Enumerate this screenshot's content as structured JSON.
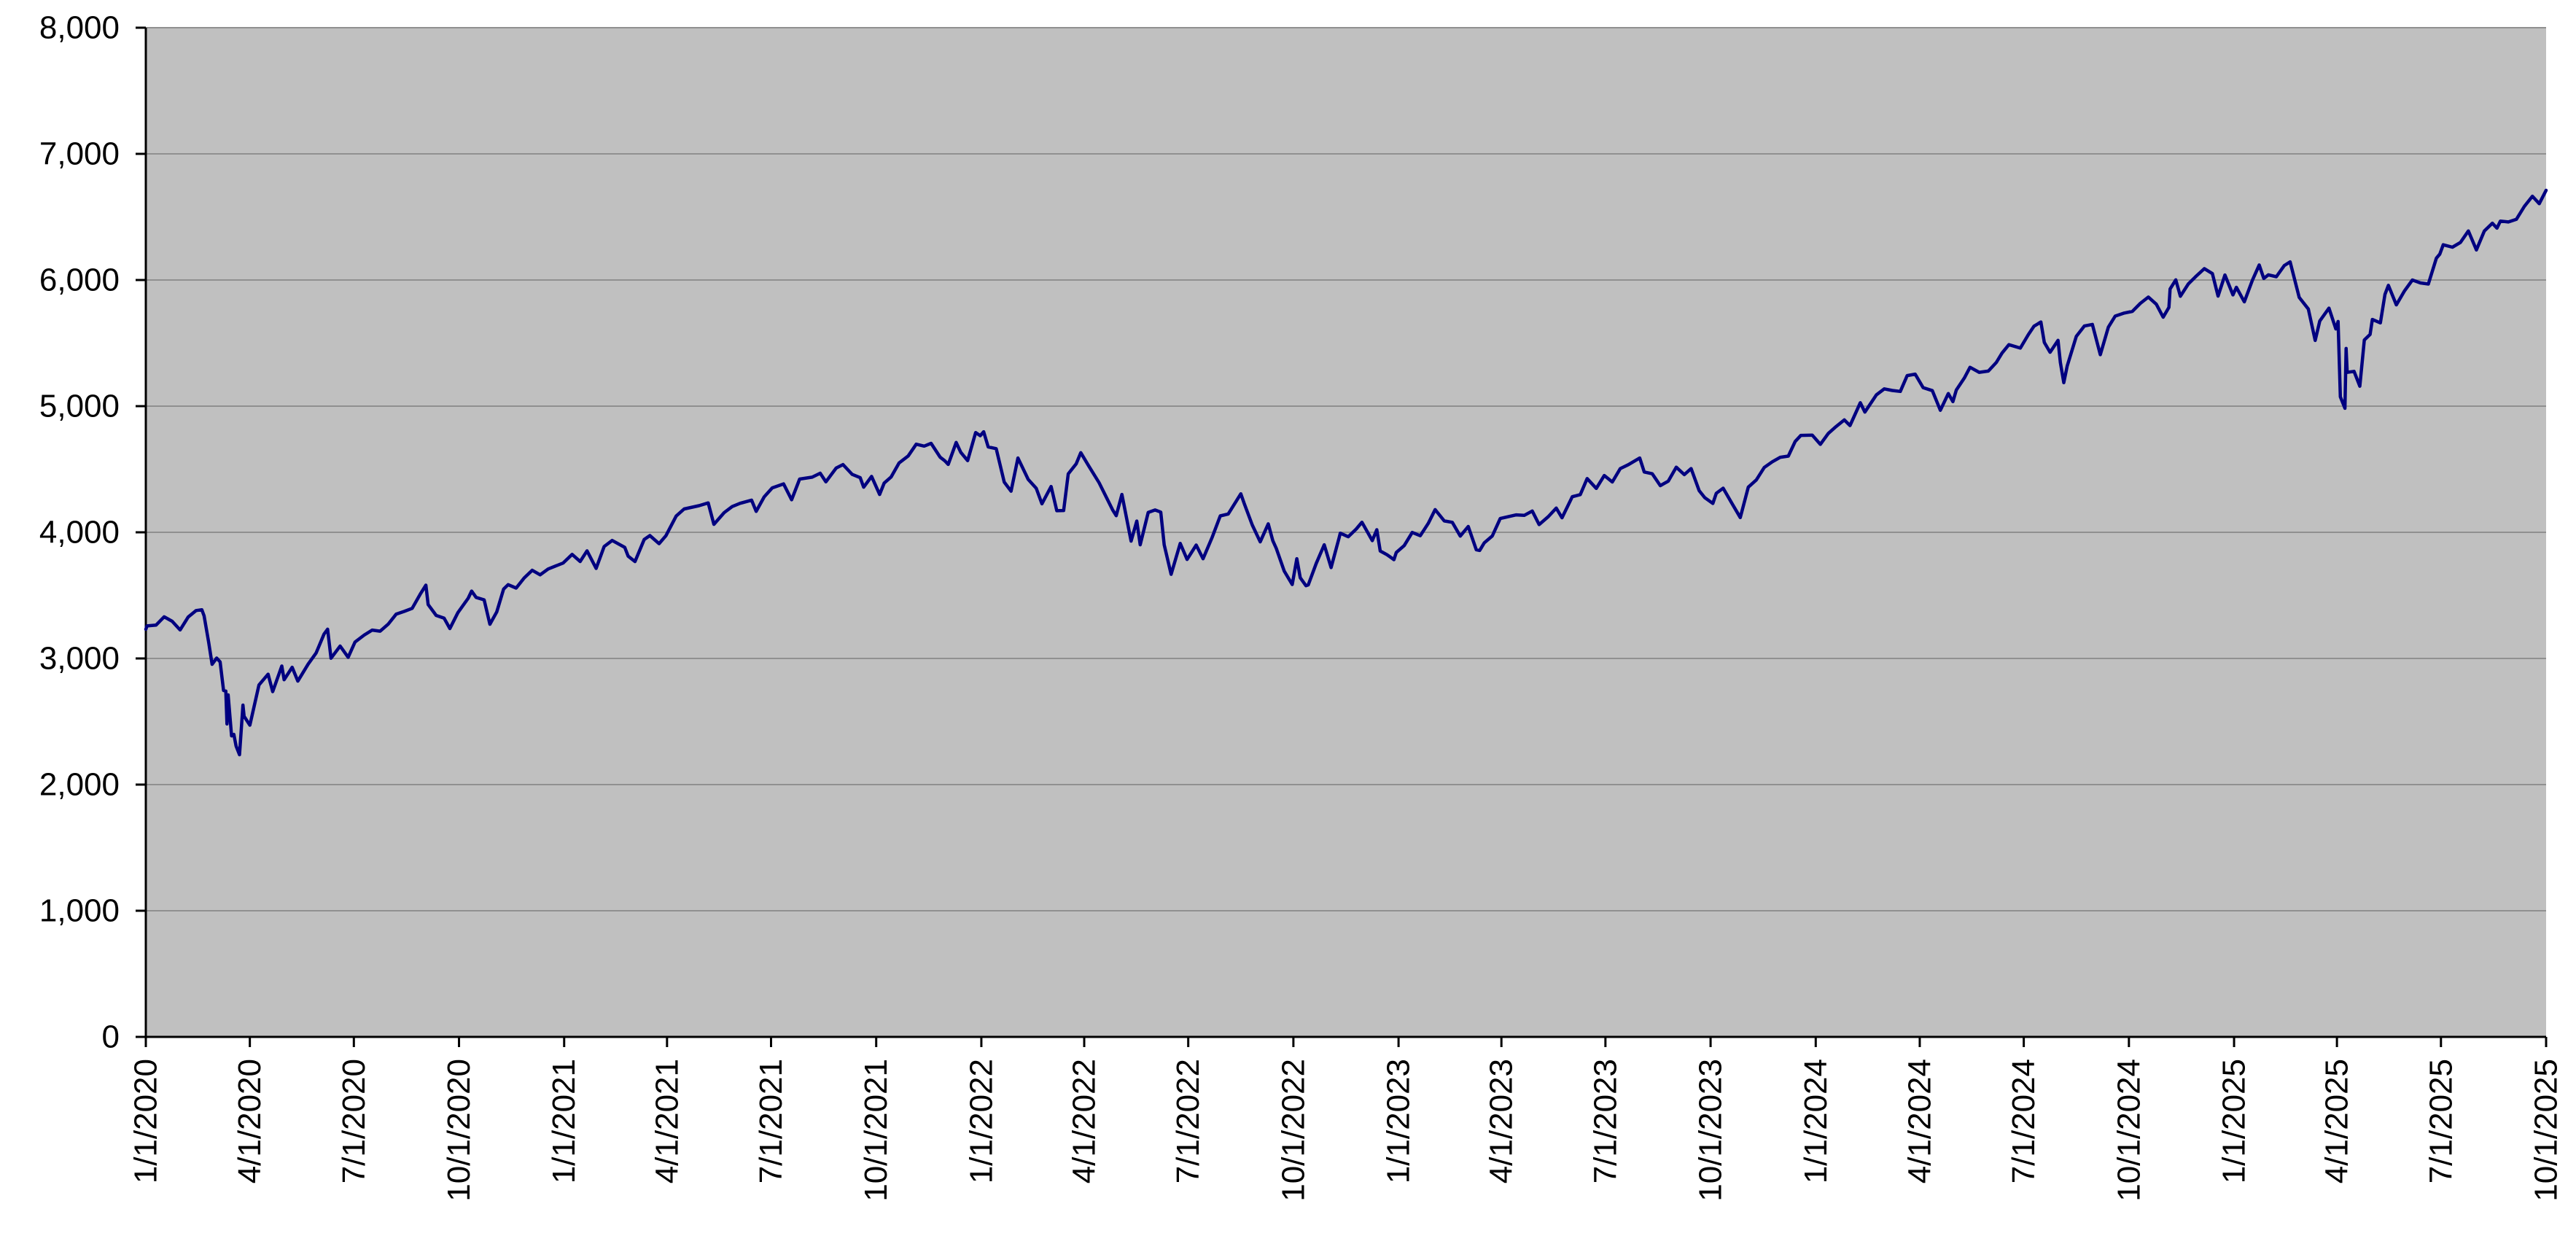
{
  "chart_data": {
    "type": "line",
    "title": "",
    "xlabel": "",
    "ylabel": "",
    "legend": "none",
    "grid": "horizontal",
    "ylim": [
      0,
      8000
    ],
    "x_range": [
      "1/1/2020",
      "10/1/2025"
    ],
    "colors": {
      "line": "#000080",
      "plot_background": "#c0c0c0",
      "gridline": "#909090",
      "axis": "#000000",
      "text": "#000000",
      "page_background": "#ffffff"
    },
    "y_ticks": [
      {
        "value": 0,
        "label": "0"
      },
      {
        "value": 1000,
        "label": "1,000"
      },
      {
        "value": 2000,
        "label": "2,000"
      },
      {
        "value": 3000,
        "label": "3,000"
      },
      {
        "value": 4000,
        "label": "4,000"
      },
      {
        "value": 5000,
        "label": "5,000"
      },
      {
        "value": 6000,
        "label": "6,000"
      },
      {
        "value": 7000,
        "label": "7,000"
      },
      {
        "value": 8000,
        "label": "8,000"
      }
    ],
    "x_ticks": [
      "1/1/2020",
      "4/1/2020",
      "7/1/2020",
      "10/1/2020",
      "1/1/2021",
      "4/1/2021",
      "7/1/2021",
      "10/1/2021",
      "1/1/2022",
      "4/1/2022",
      "7/1/2022",
      "10/1/2022",
      "1/1/2023",
      "4/1/2023",
      "7/1/2023",
      "10/1/2023",
      "1/1/2024",
      "4/1/2024",
      "7/1/2024",
      "10/1/2024",
      "1/1/2025",
      "4/1/2025",
      "7/1/2025",
      "10/1/2025"
    ],
    "points": [
      [
        "1/1/2020",
        3231
      ],
      [
        "1/2/2020",
        3258
      ],
      [
        "1/10/2020",
        3265
      ],
      [
        "1/17/2020",
        3330
      ],
      [
        "1/24/2020",
        3295
      ],
      [
        "1/31/2020",
        3226
      ],
      [
        "2/7/2020",
        3328
      ],
      [
        "2/14/2020",
        3380
      ],
      [
        "2/19/2020",
        3386
      ],
      [
        "2/21/2020",
        3338
      ],
      [
        "2/25/2020",
        3128
      ],
      [
        "2/28/2020",
        2954
      ],
      [
        "3/3/2020",
        3003
      ],
      [
        "3/6/2020",
        2972
      ],
      [
        "3/9/2020",
        2747
      ],
      [
        "3/11/2020",
        2741
      ],
      [
        "3/12/2020",
        2481
      ],
      [
        "3/13/2020",
        2711
      ],
      [
        "3/16/2020",
        2386
      ],
      [
        "3/18/2020",
        2398
      ],
      [
        "3/20/2020",
        2305
      ],
      [
        "3/23/2020",
        2237
      ],
      [
        "3/26/2020",
        2630
      ],
      [
        "3/27/2020",
        2541
      ],
      [
        "4/1/2020",
        2471
      ],
      [
        "4/9/2020",
        2790
      ],
      [
        "4/17/2020",
        2875
      ],
      [
        "4/21/2020",
        2737
      ],
      [
        "4/29/2020",
        2940
      ],
      [
        "5/1/2020",
        2831
      ],
      [
        "5/8/2020",
        2930
      ],
      [
        "5/13/2020",
        2820
      ],
      [
        "5/22/2020",
        2955
      ],
      [
        "5/29/2020",
        3044
      ],
      [
        "6/5/2020",
        3194
      ],
      [
        "6/8/2020",
        3232
      ],
      [
        "6/11/2020",
        3002
      ],
      [
        "6/19/2020",
        3098
      ],
      [
        "6/26/2020",
        3009
      ],
      [
        "7/2/2020",
        3130
      ],
      [
        "7/10/2020",
        3185
      ],
      [
        "7/17/2020",
        3225
      ],
      [
        "7/24/2020",
        3216
      ],
      [
        "7/31/2020",
        3271
      ],
      [
        "8/7/2020",
        3351
      ],
      [
        "8/14/2020",
        3373
      ],
      [
        "8/21/2020",
        3397
      ],
      [
        "8/28/2020",
        3508
      ],
      [
        "9/2/2020",
        3581
      ],
      [
        "9/4/2020",
        3427
      ],
      [
        "9/11/2020",
        3341
      ],
      [
        "9/18/2020",
        3319
      ],
      [
        "9/23/2020",
        3237
      ],
      [
        "9/30/2020",
        3363
      ],
      [
        "10/9/2020",
        3477
      ],
      [
        "10/12/2020",
        3534
      ],
      [
        "10/16/2020",
        3484
      ],
      [
        "10/23/2020",
        3465
      ],
      [
        "10/28/2020",
        3271
      ],
      [
        "11/3/2020",
        3369
      ],
      [
        "11/9/2020",
        3550
      ],
      [
        "11/13/2020",
        3585
      ],
      [
        "11/20/2020",
        3558
      ],
      [
        "11/27/2020",
        3638
      ],
      [
        "12/4/2020",
        3699
      ],
      [
        "12/11/2020",
        3663
      ],
      [
        "12/18/2020",
        3709
      ],
      [
        "12/31/2020",
        3756
      ],
      [
        "1/8/2021",
        3825
      ],
      [
        "1/15/2021",
        3768
      ],
      [
        "1/21/2021",
        3853
      ],
      [
        "1/29/2021",
        3714
      ],
      [
        "2/5/2021",
        3887
      ],
      [
        "2/12/2021",
        3935
      ],
      [
        "2/23/2021",
        3881
      ],
      [
        "2/26/2021",
        3811
      ],
      [
        "3/4/2021",
        3768
      ],
      [
        "3/12/2021",
        3943
      ],
      [
        "3/17/2021",
        3974
      ],
      [
        "3/25/2021",
        3910
      ],
      [
        "3/31/2021",
        3973
      ],
      [
        "4/9/2021",
        4129
      ],
      [
        "4/16/2021",
        4185
      ],
      [
        "4/29/2021",
        4211
      ],
      [
        "5/7/2021",
        4233
      ],
      [
        "5/12/2021",
        4063
      ],
      [
        "5/21/2021",
        4156
      ],
      [
        "5/28/2021",
        4204
      ],
      [
        "6/4/2021",
        4230
      ],
      [
        "6/14/2021",
        4255
      ],
      [
        "6/18/2021",
        4166
      ],
      [
        "6/25/2021",
        4281
      ],
      [
        "7/2/2021",
        4352
      ],
      [
        "7/12/2021",
        4384
      ],
      [
        "7/19/2021",
        4258
      ],
      [
        "7/26/2021",
        4422
      ],
      [
        "8/6/2021",
        4437
      ],
      [
        "8/13/2021",
        4468
      ],
      [
        "8/18/2021",
        4400
      ],
      [
        "8/27/2021",
        4509
      ],
      [
        "9/2/2021",
        4537
      ],
      [
        "9/10/2021",
        4459
      ],
      [
        "9/17/2021",
        4433
      ],
      [
        "9/20/2021",
        4358
      ],
      [
        "9/27/2021",
        4443
      ],
      [
        "10/4/2021",
        4300
      ],
      [
        "10/8/2021",
        4391
      ],
      [
        "10/14/2021",
        4438
      ],
      [
        "10/21/2021",
        4550
      ],
      [
        "10/29/2021",
        4605
      ],
      [
        "11/5/2021",
        4698
      ],
      [
        "11/12/2021",
        4683
      ],
      [
        "11/18/2021",
        4705
      ],
      [
        "11/26/2021",
        4595
      ],
      [
        "11/30/2021",
        4567
      ],
      [
        "12/3/2021",
        4538
      ],
      [
        "12/10/2021",
        4712
      ],
      [
        "12/14/2021",
        4634
      ],
      [
        "12/20/2021",
        4568
      ],
      [
        "12/27/2021",
        4791
      ],
      [
        "12/31/2021",
        4766
      ],
      [
        "1/3/2022",
        4797
      ],
      [
        "1/7/2022",
        4677
      ],
      [
        "1/14/2022",
        4663
      ],
      [
        "1/21/2022",
        4398
      ],
      [
        "1/27/2022",
        4326
      ],
      [
        "2/2/2022",
        4589
      ],
      [
        "2/11/2022",
        4419
      ],
      [
        "2/18/2022",
        4349
      ],
      [
        "2/23/2022",
        4226
      ],
      [
        "3/3/2022",
        4363
      ],
      [
        "3/8/2022",
        4171
      ],
      [
        "3/14/2022",
        4173
      ],
      [
        "3/18/2022",
        4463
      ],
      [
        "3/25/2022",
        4543
      ],
      [
        "3/29/2022",
        4631
      ],
      [
        "4/5/2022",
        4525
      ],
      [
        "4/14/2022",
        4393
      ],
      [
        "4/26/2022",
        4175
      ],
      [
        "4/29/2022",
        4132
      ],
      [
        "5/4/2022",
        4300
      ],
      [
        "5/12/2022",
        3930
      ],
      [
        "5/17/2022",
        4089
      ],
      [
        "5/20/2022",
        3901
      ],
      [
        "5/27/2022",
        4158
      ],
      [
        "6/2/2022",
        4177
      ],
      [
        "6/7/2022",
        4160
      ],
      [
        "6/10/2022",
        3901
      ],
      [
        "6/16/2022",
        3667
      ],
      [
        "6/24/2022",
        3912
      ],
      [
        "6/30/2022",
        3785
      ],
      [
        "7/8/2022",
        3899
      ],
      [
        "7/14/2022",
        3790
      ],
      [
        "7/22/2022",
        3962
      ],
      [
        "7/29/2022",
        4130
      ],
      [
        "8/5/2022",
        4145
      ],
      [
        "8/16/2022",
        4305
      ],
      [
        "8/19/2022",
        4228
      ],
      [
        "8/26/2022",
        4058
      ],
      [
        "9/2/2022",
        3924
      ],
      [
        "9/9/2022",
        4067
      ],
      [
        "9/13/2022",
        3933
      ],
      [
        "9/16/2022",
        3873
      ],
      [
        "9/23/2022",
        3693
      ],
      [
        "9/30/2022",
        3586
      ],
      [
        "10/4/2022",
        3791
      ],
      [
        "10/7/2022",
        3640
      ],
      [
        "10/12/2022",
        3577
      ],
      [
        "10/14/2022",
        3583
      ],
      [
        "10/21/2022",
        3753
      ],
      [
        "10/28/2022",
        3901
      ],
      [
        "11/3/2022",
        3720
      ],
      [
        "11/10/2022",
        3956
      ],
      [
        "11/11/2022",
        3993
      ],
      [
        "11/18/2022",
        3965
      ],
      [
        "11/25/2022",
        4026
      ],
      [
        "11/30/2022",
        4080
      ],
      [
        "12/9/2022",
        3934
      ],
      [
        "12/13/2022",
        4020
      ],
      [
        "12/16/2022",
        3852
      ],
      [
        "12/22/2022",
        3822
      ],
      [
        "12/28/2022",
        3783
      ],
      [
        "12/30/2022",
        3840
      ],
      [
        "1/6/2023",
        3895
      ],
      [
        "1/13/2023",
        3999
      ],
      [
        "1/20/2023",
        3973
      ],
      [
        "1/27/2023",
        4071
      ],
      [
        "2/2/2023",
        4180
      ],
      [
        "2/10/2023",
        4090
      ],
      [
        "2/17/2023",
        4079
      ],
      [
        "2/24/2023",
        3970
      ],
      [
        "3/3/2023",
        4046
      ],
      [
        "3/10/2023",
        3862
      ],
      [
        "3/13/2023",
        3856
      ],
      [
        "3/17/2023",
        3917
      ],
      [
        "3/24/2023",
        3971
      ],
      [
        "3/31/2023",
        4109
      ],
      [
        "4/14/2023",
        4138
      ],
      [
        "4/21/2023",
        4134
      ],
      [
        "4/28/2023",
        4169
      ],
      [
        "5/4/2023",
        4061
      ],
      [
        "5/12/2023",
        4124
      ],
      [
        "5/19/2023",
        4192
      ],
      [
        "5/24/2023",
        4115
      ],
      [
        "6/2/2023",
        4282
      ],
      [
        "6/9/2023",
        4299
      ],
      [
        "6/15/2023",
        4426
      ],
      [
        "6/23/2023",
        4348
      ],
      [
        "6/30/2023",
        4450
      ],
      [
        "7/7/2023",
        4399
      ],
      [
        "7/14/2023",
        4505
      ],
      [
        "7/21/2023",
        4536
      ],
      [
        "7/31/2023",
        4589
      ],
      [
        "8/4/2023",
        4478
      ],
      [
        "8/11/2023",
        4464
      ],
      [
        "8/18/2023",
        4370
      ],
      [
        "8/25/2023",
        4406
      ],
      [
        "9/1/2023",
        4516
      ],
      [
        "9/8/2023",
        4457
      ],
      [
        "9/14/2023",
        4505
      ],
      [
        "9/21/2023",
        4330
      ],
      [
        "9/26/2023",
        4274
      ],
      [
        "10/3/2023",
        4229
      ],
      [
        "10/6/2023",
        4309
      ],
      [
        "10/12/2023",
        4350
      ],
      [
        "10/20/2023",
        4224
      ],
      [
        "10/27/2023",
        4117
      ],
      [
        "11/3/2023",
        4358
      ],
      [
        "11/10/2023",
        4415
      ],
      [
        "11/17/2023",
        4514
      ],
      [
        "11/24/2023",
        4559
      ],
      [
        "12/1/2023",
        4595
      ],
      [
        "12/8/2023",
        4604
      ],
      [
        "12/14/2023",
        4720
      ],
      [
        "12/19/2023",
        4768
      ],
      [
        "12/29/2023",
        4770
      ],
      [
        "1/5/2024",
        4697
      ],
      [
        "1/12/2024",
        4784
      ],
      [
        "1/19/2024",
        4840
      ],
      [
        "1/26/2024",
        4891
      ],
      [
        "1/31/2024",
        4846
      ],
      [
        "2/9/2024",
        5027
      ],
      [
        "2/13/2024",
        4953
      ],
      [
        "2/23/2024",
        5089
      ],
      [
        "3/1/2024",
        5137
      ],
      [
        "3/8/2024",
        5124
      ],
      [
        "3/15/2024",
        5117
      ],
      [
        "3/21/2024",
        5242
      ],
      [
        "3/28/2024",
        5254
      ],
      [
        "4/4/2024",
        5147
      ],
      [
        "4/12/2024",
        5123
      ],
      [
        "4/19/2024",
        4967
      ],
      [
        "4/26/2024",
        5100
      ],
      [
        "4/30/2024",
        5036
      ],
      [
        "5/3/2024",
        5128
      ],
      [
        "5/10/2024",
        5223
      ],
      [
        "5/15/2024",
        5308
      ],
      [
        "5/23/2024",
        5268
      ],
      [
        "5/31/2024",
        5278
      ],
      [
        "6/7/2024",
        5347
      ],
      [
        "6/12/2024",
        5421
      ],
      [
        "6/18/2024",
        5487
      ],
      [
        "6/28/2024",
        5460
      ],
      [
        "7/5/2024",
        5567
      ],
      [
        "7/10/2024",
        5634
      ],
      [
        "7/16/2024",
        5667
      ],
      [
        "7/19/2024",
        5505
      ],
      [
        "7/24/2024",
        5427
      ],
      [
        "7/31/2024",
        5522
      ],
      [
        "8/2/2024",
        5346
      ],
      [
        "8/5/2024",
        5186
      ],
      [
        "8/8/2024",
        5319
      ],
      [
        "8/16/2024",
        5554
      ],
      [
        "8/23/2024",
        5635
      ],
      [
        "8/30/2024",
        5648
      ],
      [
        "9/6/2024",
        5408
      ],
      [
        "9/13/2024",
        5626
      ],
      [
        "9/19/2024",
        5714
      ],
      [
        "9/27/2024",
        5738
      ],
      [
        "10/4/2024",
        5751
      ],
      [
        "10/11/2024",
        5815
      ],
      [
        "10/18/2024",
        5865
      ],
      [
        "10/25/2024",
        5808
      ],
      [
        "10/31/2024",
        5705
      ],
      [
        "11/5/2024",
        5783
      ],
      [
        "11/6/2024",
        5929
      ],
      [
        "11/11/2024",
        6001
      ],
      [
        "11/15/2024",
        5871
      ],
      [
        "11/22/2024",
        5969
      ],
      [
        "11/29/2024",
        6032
      ],
      [
        "12/6/2024",
        6090
      ],
      [
        "12/13/2024",
        6051
      ],
      [
        "12/18/2024",
        5872
      ],
      [
        "12/24/2024",
        6040
      ],
      [
        "12/31/2024",
        5882
      ],
      [
        "1/3/2025",
        5942
      ],
      [
        "1/10/2025",
        5827
      ],
      [
        "1/17/2025",
        5997
      ],
      [
        "1/23/2025",
        6119
      ],
      [
        "1/27/2025",
        6012
      ],
      [
        "1/31/2025",
        6041
      ],
      [
        "2/7/2025",
        6026
      ],
      [
        "2/14/2025",
        6115
      ],
      [
        "2/19/2025",
        6144
      ],
      [
        "2/27/2025",
        5862
      ],
      [
        "3/7/2025",
        5770
      ],
      [
        "3/13/2025",
        5521
      ],
      [
        "3/17/2025",
        5675
      ],
      [
        "3/25/2025",
        5777
      ],
      [
        "3/31/2025",
        5612
      ],
      [
        "4/2/2025",
        5671
      ],
      [
        "4/4/2025",
        5074
      ],
      [
        "4/8/2025",
        4983
      ],
      [
        "4/9/2025",
        5457
      ],
      [
        "4/10/2025",
        5268
      ],
      [
        "4/16/2025",
        5276
      ],
      [
        "4/21/2025",
        5158
      ],
      [
        "4/25/2025",
        5525
      ],
      [
        "4/30/2025",
        5569
      ],
      [
        "5/2/2025",
        5687
      ],
      [
        "5/9/2025",
        5660
      ],
      [
        "5/13/2025",
        5886
      ],
      [
        "5/16/2025",
        5958
      ],
      [
        "5/23/2025",
        5803
      ],
      [
        "5/30/2025",
        5912
      ],
      [
        "6/6/2025",
        6000
      ],
      [
        "6/13/2025",
        5977
      ],
      [
        "6/20/2025",
        5968
      ],
      [
        "6/27/2025",
        6173
      ],
      [
        "6/30/2025",
        6205
      ],
      [
        "7/3/2025",
        6279
      ],
      [
        "7/11/2025",
        6260
      ],
      [
        "7/18/2025",
        6297
      ],
      [
        "7/25/2025",
        6389
      ],
      [
        "8/1/2025",
        6238
      ],
      [
        "8/8/2025",
        6389
      ],
      [
        "8/15/2025",
        6450
      ],
      [
        "8/19/2025",
        6411
      ],
      [
        "8/22/2025",
        6467
      ],
      [
        "8/29/2025",
        6460
      ],
      [
        "9/5/2025",
        6481
      ],
      [
        "9/12/2025",
        6584
      ],
      [
        "9/19/2025",
        6664
      ],
      [
        "9/25/2025",
        6605
      ],
      [
        "10/1/2025",
        6711
      ]
    ]
  }
}
